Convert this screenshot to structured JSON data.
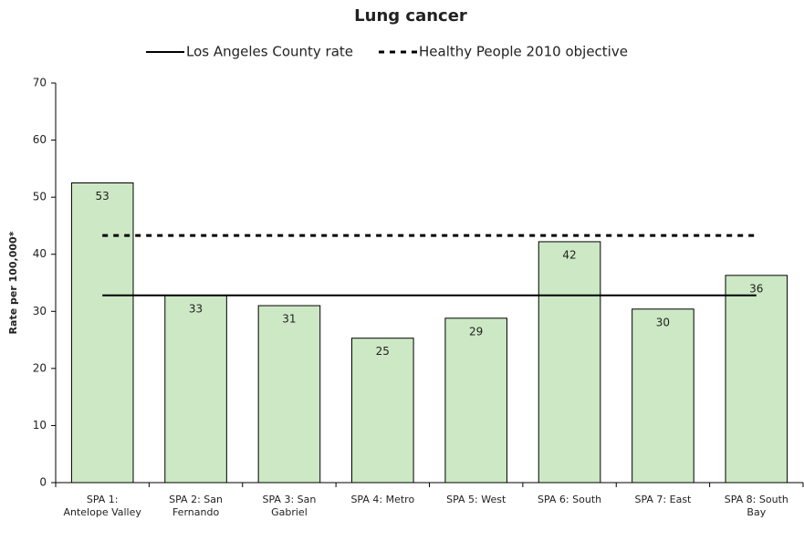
{
  "chart_data": {
    "type": "bar",
    "title": "Lung cancer",
    "y_label": "Rate per 100,000*",
    "categories": [
      "SPA 1: Antelope Valley",
      "SPA 2: San Fernando",
      "SPA 3: San Gabriel",
      "SPA 4: Metro",
      "SPA 5: West",
      "SPA 6: South",
      "SPA 7: East",
      "SPA 8: South Bay"
    ],
    "values": [
      52.5,
      32.8,
      31.0,
      25.3,
      28.8,
      42.2,
      30.4,
      36.3
    ],
    "value_labels": [
      "53",
      "33",
      "31",
      "25",
      "29",
      "42",
      "30",
      "36"
    ],
    "color": "#cce8c4",
    "ylim": [
      0,
      70
    ],
    "yticks": [
      0,
      10,
      20,
      30,
      40,
      50,
      60,
      70
    ],
    "grid": false,
    "reference_lines": [
      {
        "name": "Los Angeles County rate",
        "value": 32.8,
        "dashed": false
      },
      {
        "name": "Healthy People 2010 objective",
        "value": 43.3,
        "dashed": true
      }
    ],
    "legend": "top"
  }
}
